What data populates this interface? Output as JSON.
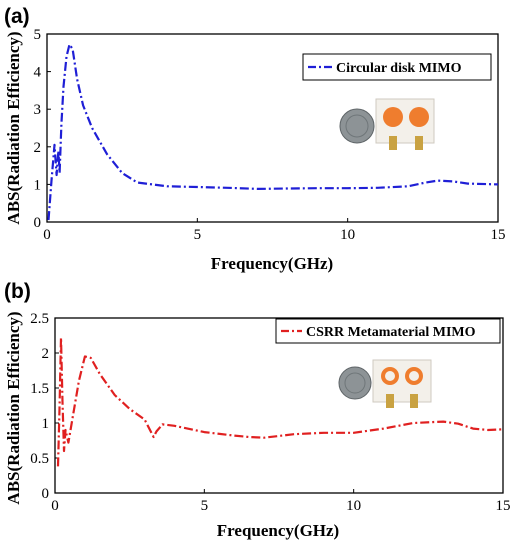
{
  "chart_data": [
    {
      "panel_label": "(a)",
      "type": "line",
      "xlabel": "Frequency(GHz)",
      "ylabel": "ABS(Radiation Efficiency)",
      "xlim": [
        0,
        15
      ],
      "ylim": [
        0,
        5
      ],
      "xticks": [
        "0",
        "5",
        "10",
        "15"
      ],
      "yticks": [
        "0",
        "1",
        "2",
        "3",
        "4",
        "5"
      ],
      "legend_position": "top-right",
      "series": [
        {
          "name": "Circular disk MIMO",
          "color": "#1f1fd6",
          "style": "dash-dot",
          "x": [
            0.05,
            0.15,
            0.25,
            0.32,
            0.38,
            0.42,
            0.48,
            0.55,
            0.65,
            0.75,
            0.85,
            1.0,
            1.2,
            1.5,
            2.0,
            2.5,
            3.0,
            4.0,
            5.0,
            6.0,
            7.0,
            8.0,
            9.0,
            10.0,
            11.0,
            12.0,
            12.6,
            13.0,
            13.5,
            14.0,
            15.0
          ],
          "y": [
            0.05,
            1.1,
            2.05,
            1.25,
            1.9,
            1.3,
            2.6,
            3.6,
            4.4,
            4.72,
            4.6,
            3.8,
            3.1,
            2.5,
            1.8,
            1.3,
            1.05,
            0.95,
            0.93,
            0.91,
            0.88,
            0.89,
            0.9,
            0.9,
            0.91,
            0.95,
            1.05,
            1.1,
            1.08,
            1.02,
            1.0
          ]
        }
      ]
    },
    {
      "panel_label": "(b)",
      "type": "line",
      "xlabel": "Frequency(GHz)",
      "ylabel": "ABS(Radiation Efficiency)",
      "xlim": [
        0,
        15
      ],
      "ylim": [
        0,
        2.5
      ],
      "xticks": [
        "0",
        "5",
        "10",
        "15"
      ],
      "yticks": [
        "0",
        "0.5",
        "1",
        "1.5",
        "2",
        "2.5"
      ],
      "legend_position": "top-right",
      "series": [
        {
          "name": "CSRR Metamaterial MIMO",
          "color": "#e02020",
          "style": "dash-dot",
          "x": [
            0.1,
            0.15,
            0.2,
            0.25,
            0.3,
            0.35,
            0.45,
            0.6,
            0.8,
            1.0,
            1.2,
            1.5,
            2.0,
            2.5,
            3.0,
            3.3,
            3.4,
            3.6,
            4.0,
            5.0,
            6.0,
            6.5,
            7.0,
            8.0,
            9.0,
            10.0,
            11.0,
            12.0,
            13.0,
            13.5,
            14.0,
            14.5,
            15.0
          ],
          "y": [
            0.38,
            1.2,
            2.22,
            1.3,
            0.6,
            0.9,
            0.72,
            1.1,
            1.6,
            1.95,
            1.93,
            1.7,
            1.4,
            1.2,
            1.05,
            0.8,
            0.88,
            0.98,
            0.96,
            0.87,
            0.82,
            0.8,
            0.79,
            0.84,
            0.86,
            0.86,
            0.92,
            1.0,
            1.02,
            0.99,
            0.92,
            0.9,
            0.91
          ]
        }
      ]
    }
  ]
}
